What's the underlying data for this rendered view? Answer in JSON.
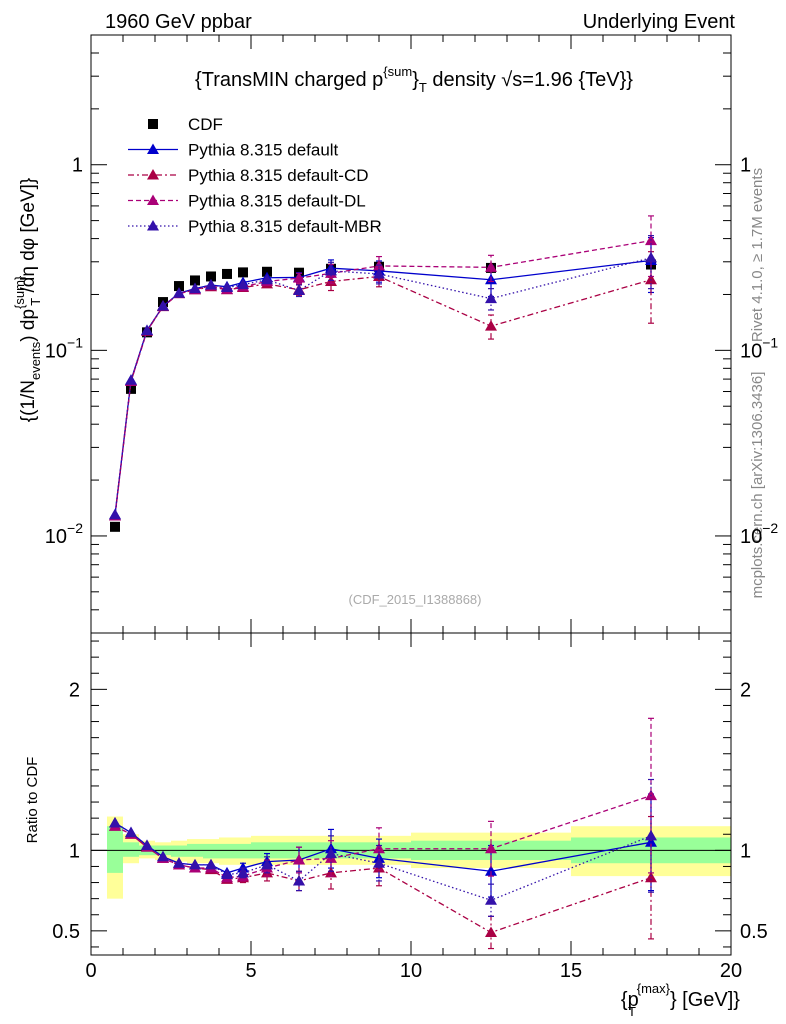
{
  "header": {
    "left": "1960 GeV ppbar",
    "right": "Underlying Event"
  },
  "side_labels": {
    "top": "Rivet 4.1.0, ≥ 1.7M events",
    "bottom": "mcplots.cern.ch [arXiv:1306.3436]"
  },
  "colors": {
    "data": "#000000",
    "default": "#0000cc",
    "cd": "#aa0044",
    "dl": "#aa0077",
    "mbr": "#3311aa",
    "band_outer": "#ffff99",
    "band_inner": "#99ff99"
  },
  "chart_data": [
    {
      "type": "scatter",
      "panel": "main",
      "title": "{TransMIN charged p^{sum}_T density √s=1.96 {TeV}}",
      "title_parts": {
        "a": "{TransMIN charged p",
        "sup": "{sum",
        "b": "}",
        "sub": "T",
        "c": " density √s=1.96 {TeV}}"
      },
      "ylabel": "{(1/N_events) dp^{sum}_T /dη  dφ [GeV]}",
      "ylabel_parts": {
        "a": "{(1/N",
        "sub1": "events",
        "b": ") dp",
        "sup": "{sum}",
        "sub2": "T",
        "c": " /dη  dφ [GeV]}"
      },
      "yscale": "log",
      "ylim": [
        0.003,
        5
      ],
      "xlim": [
        0,
        20
      ],
      "yticks": [
        {
          "value": 0.01,
          "base": "10",
          "exp": "−2"
        },
        {
          "value": 0.1,
          "base": "10",
          "exp": "−1"
        },
        {
          "value": 1,
          "base": "1",
          "exp": ""
        }
      ],
      "watermark": "(CDF_2015_I1388868)",
      "legend": [
        {
          "key": "data",
          "label": "CDF"
        },
        {
          "key": "default",
          "label": "Pythia 8.315 default"
        },
        {
          "key": "cd",
          "label": "Pythia 8.315 default-CD"
        },
        {
          "key": "dl",
          "label": "Pythia 8.315 default-DL"
        },
        {
          "key": "mbr",
          "label": "Pythia 8.315 default-MBR"
        }
      ],
      "series": [
        {
          "key": "data",
          "name": "CDF",
          "marker": "square",
          "x": [
            0.75,
            1.25,
            1.75,
            2.25,
            2.75,
            3.25,
            3.75,
            4.25,
            4.75,
            5.5,
            6.5,
            7.5,
            9.0,
            12.5,
            17.5
          ],
          "y": [
            0.0112,
            0.062,
            0.125,
            0.182,
            0.222,
            0.238,
            0.25,
            0.258,
            0.263,
            0.265,
            0.262,
            0.275,
            0.282,
            0.278,
            0.29
          ]
        },
        {
          "key": "default",
          "name": "Pythia 8.315 default",
          "marker": "triangle",
          "dash": "",
          "x": [
            0.75,
            1.25,
            1.75,
            2.25,
            2.75,
            3.25,
            3.75,
            4.25,
            4.75,
            5.5,
            6.5,
            7.5,
            9.0,
            12.5,
            17.5
          ],
          "y": [
            0.013,
            0.069,
            0.128,
            0.173,
            0.203,
            0.215,
            0.225,
            0.22,
            0.232,
            0.246,
            0.247,
            0.277,
            0.268,
            0.24,
            0.305
          ],
          "err": [
            0,
            0,
            0,
            0,
            0,
            0,
            0,
            0,
            0,
            0,
            0.015,
            0.03,
            0.035,
            0.045,
            0.1
          ]
        },
        {
          "key": "cd",
          "name": "Pythia 8.315 default-CD",
          "marker": "triangle",
          "dash": "6,3,2,3",
          "x": [
            0.75,
            1.25,
            1.75,
            2.25,
            2.75,
            3.25,
            3.75,
            4.25,
            4.75,
            5.5,
            6.5,
            7.5,
            9.0,
            12.5,
            17.5
          ],
          "y": [
            0.0128,
            0.068,
            0.127,
            0.172,
            0.202,
            0.212,
            0.22,
            0.212,
            0.218,
            0.228,
            0.212,
            0.235,
            0.25,
            0.135,
            0.24
          ],
          "err": [
            0,
            0,
            0,
            0,
            0,
            0,
            0,
            0,
            0,
            0,
            0.015,
            0.025,
            0.03,
            0.02,
            0.1
          ]
        },
        {
          "key": "dl",
          "name": "Pythia 8.315 default-DL",
          "marker": "triangle",
          "dash": "5,3",
          "x": [
            0.75,
            1.25,
            1.75,
            2.25,
            2.75,
            3.25,
            3.75,
            4.25,
            4.75,
            5.5,
            6.5,
            7.5,
            9.0,
            12.5,
            17.5
          ],
          "y": [
            0.0128,
            0.068,
            0.127,
            0.173,
            0.202,
            0.212,
            0.223,
            0.213,
            0.22,
            0.235,
            0.245,
            0.26,
            0.285,
            0.28,
            0.39
          ],
          "err": [
            0,
            0,
            0,
            0,
            0,
            0,
            0,
            0,
            0,
            0,
            0.015,
            0.03,
            0.035,
            0.045,
            0.14
          ]
        },
        {
          "key": "mbr",
          "name": "Pythia 8.315 default-MBR",
          "marker": "triangle",
          "dash": "1.5,2.5",
          "x": [
            0.75,
            1.25,
            1.75,
            2.25,
            2.75,
            3.25,
            3.75,
            4.25,
            4.75,
            5.5,
            6.5,
            7.5,
            9.0,
            12.5,
            17.5
          ],
          "y": [
            0.013,
            0.069,
            0.128,
            0.173,
            0.203,
            0.215,
            0.225,
            0.218,
            0.226,
            0.24,
            0.21,
            0.268,
            0.258,
            0.19,
            0.315
          ],
          "err": [
            0,
            0,
            0,
            0,
            0,
            0,
            0,
            0,
            0,
            0,
            0.015,
            0.03,
            0.03,
            0.025,
            0.1
          ]
        }
      ]
    },
    {
      "type": "line",
      "panel": "ratio",
      "ylabel": "Ratio to CDF",
      "xlabel": "{p_T^{max}} [GeV]}",
      "xlabel_parts": {
        "a": "{p",
        "sup": "{max}",
        "sub": "T",
        "b": "} [GeV]}"
      },
      "xlim": [
        0,
        20
      ],
      "ylim": [
        0.35,
        2.35
      ],
      "xticks": [
        0,
        5,
        10,
        15,
        20
      ],
      "xtick_labels": [
        "0",
        "5",
        "10",
        "15",
        "20"
      ],
      "yticks": [
        0.5,
        1,
        2
      ],
      "ytick_labels": [
        "0.5",
        "1",
        "2"
      ],
      "bands": [
        {
          "x0": 0.5,
          "x1": 1.0,
          "outer": [
            0.7,
            1.21
          ],
          "inner": [
            0.86,
            1.15
          ]
        },
        {
          "x0": 1.0,
          "x1": 1.5,
          "outer": [
            0.92,
            1.1
          ],
          "inner": [
            0.96,
            1.05
          ]
        },
        {
          "x0": 1.5,
          "x1": 2.0,
          "outer": [
            0.95,
            1.06
          ],
          "inner": [
            0.97,
            1.03
          ]
        },
        {
          "x0": 2.0,
          "x1": 2.5,
          "outer": [
            0.94,
            1.05
          ],
          "inner": [
            0.97,
            1.03
          ]
        },
        {
          "x0": 2.5,
          "x1": 3.0,
          "outer": [
            0.93,
            1.06
          ],
          "inner": [
            0.96,
            1.03
          ]
        },
        {
          "x0": 3.0,
          "x1": 3.5,
          "outer": [
            0.92,
            1.07
          ],
          "inner": [
            0.96,
            1.04
          ]
        },
        {
          "x0": 3.5,
          "x1": 4.0,
          "outer": [
            0.92,
            1.07
          ],
          "inner": [
            0.95,
            1.04
          ]
        },
        {
          "x0": 4.0,
          "x1": 4.5,
          "outer": [
            0.91,
            1.08
          ],
          "inner": [
            0.95,
            1.04
          ]
        },
        {
          "x0": 4.5,
          "x1": 5.0,
          "outer": [
            0.91,
            1.08
          ],
          "inner": [
            0.95,
            1.04
          ]
        },
        {
          "x0": 5.0,
          "x1": 6.0,
          "outer": [
            0.91,
            1.09
          ],
          "inner": [
            0.95,
            1.05
          ]
        },
        {
          "x0": 6.0,
          "x1": 7.0,
          "outer": [
            0.91,
            1.09
          ],
          "inner": [
            0.95,
            1.05
          ]
        },
        {
          "x0": 7.0,
          "x1": 8.0,
          "outer": [
            0.91,
            1.09
          ],
          "inner": [
            0.95,
            1.05
          ]
        },
        {
          "x0": 8.0,
          "x1": 10.0,
          "outer": [
            0.91,
            1.09
          ],
          "inner": [
            0.95,
            1.05
          ]
        },
        {
          "x0": 10.0,
          "x1": 15.0,
          "outer": [
            0.89,
            1.11
          ],
          "inner": [
            0.94,
            1.06
          ]
        },
        {
          "x0": 15.0,
          "x1": 20.0,
          "outer": [
            0.84,
            1.15
          ],
          "inner": [
            0.92,
            1.08
          ]
        }
      ],
      "series": [
        {
          "key": "default",
          "name": "Pythia 8.315 default",
          "dash": "",
          "x": [
            0.75,
            1.25,
            1.75,
            2.25,
            2.75,
            3.25,
            3.75,
            4.25,
            4.75,
            5.5,
            6.5,
            7.5,
            9.0,
            12.5,
            17.5
          ],
          "y": [
            1.17,
            1.11,
            1.03,
            0.96,
            0.92,
            0.91,
            0.91,
            0.86,
            0.89,
            0.93,
            0.94,
            1.01,
            0.95,
            0.87,
            1.05
          ],
          "err": [
            0,
            0,
            0,
            0,
            0,
            0,
            0,
            0,
            0.03,
            0.05,
            0.08,
            0.12,
            0.12,
            0.16,
            0.3
          ]
        },
        {
          "key": "cd",
          "name": "Pythia 8.315 default-CD",
          "dash": "6,3,2,3",
          "x": [
            0.75,
            1.25,
            1.75,
            2.25,
            2.75,
            3.25,
            3.75,
            4.25,
            4.75,
            5.5,
            6.5,
            7.5,
            9.0,
            12.5,
            17.5
          ],
          "y": [
            1.15,
            1.1,
            1.02,
            0.95,
            0.91,
            0.89,
            0.88,
            0.82,
            0.83,
            0.86,
            0.81,
            0.86,
            0.89,
            0.49,
            0.83
          ],
          "err": [
            0,
            0,
            0,
            0,
            0,
            0,
            0,
            0,
            0.03,
            0.05,
            0.06,
            0.1,
            0.11,
            0.1,
            0.38
          ]
        },
        {
          "key": "dl",
          "name": "Pythia 8.315 default-DL",
          "dash": "5,3",
          "x": [
            0.75,
            1.25,
            1.75,
            2.25,
            2.75,
            3.25,
            3.75,
            4.25,
            4.75,
            5.5,
            6.5,
            7.5,
            9.0,
            12.5,
            17.5
          ],
          "y": [
            1.15,
            1.1,
            1.02,
            0.95,
            0.91,
            0.89,
            0.89,
            0.83,
            0.84,
            0.89,
            0.94,
            0.95,
            1.01,
            1.01,
            1.34
          ],
          "err": [
            0,
            0,
            0,
            0,
            0,
            0,
            0,
            0,
            0.03,
            0.05,
            0.08,
            0.11,
            0.13,
            0.17,
            0.48
          ]
        },
        {
          "key": "mbr",
          "name": "Pythia 8.315 default-MBR",
          "dash": "1.5,2.5",
          "x": [
            0.75,
            1.25,
            1.75,
            2.25,
            2.75,
            3.25,
            3.75,
            4.25,
            4.75,
            5.5,
            6.5,
            7.5,
            9.0,
            12.5,
            17.5
          ],
          "y": [
            1.17,
            1.11,
            1.03,
            0.96,
            0.92,
            0.91,
            0.91,
            0.85,
            0.86,
            0.91,
            0.81,
            0.98,
            0.92,
            0.69,
            1.09
          ],
          "err": [
            0,
            0,
            0,
            0,
            0,
            0,
            0,
            0,
            0.03,
            0.05,
            0.06,
            0.11,
            0.11,
            0.1,
            0.35
          ]
        }
      ]
    }
  ]
}
